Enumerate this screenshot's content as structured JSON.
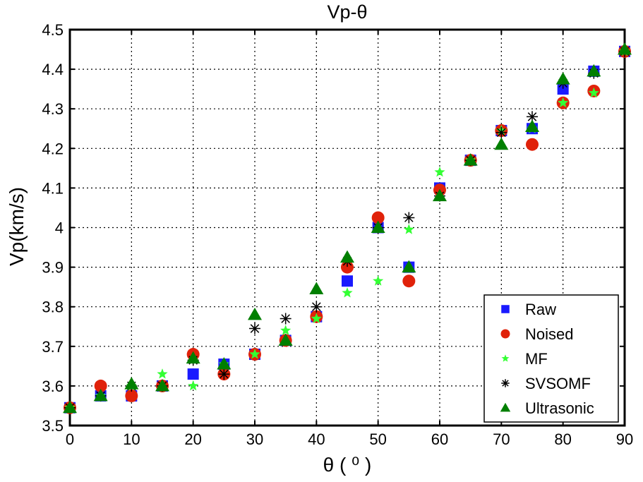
{
  "chart_data": {
    "type": "scatter",
    "title": "Vp-θ",
    "xlabel": "θ ( ⁰ )",
    "ylabel": "Vp(km/s)",
    "xlim": [
      0,
      90
    ],
    "ylim": [
      3.5,
      4.5
    ],
    "xticks": [
      "0",
      "10",
      "20",
      "30",
      "40",
      "50",
      "60",
      "70",
      "80",
      "90"
    ],
    "yticks": [
      "3.5",
      "3.6",
      "3.7",
      "3.8",
      "3.9",
      "4",
      "4.1",
      "4.2",
      "4.3",
      "4.4",
      "4.5"
    ],
    "grid": true,
    "legend_position": "bottom-right",
    "series": [
      {
        "name": "Raw",
        "marker": "square",
        "color": "#1a1aff",
        "x": [
          0,
          5,
          10,
          15,
          20,
          25,
          30,
          35,
          40,
          45,
          50,
          55,
          60,
          65,
          70,
          75,
          80,
          85,
          90
        ],
        "y": [
          3.545,
          3.575,
          3.575,
          3.6,
          3.63,
          3.655,
          3.68,
          3.715,
          3.775,
          3.865,
          4.0,
          3.9,
          4.1,
          4.17,
          4.245,
          4.25,
          4.35,
          4.395,
          4.445
        ]
      },
      {
        "name": "Noised",
        "marker": "circle",
        "color": "#e0220a",
        "x": [
          0,
          5,
          10,
          15,
          20,
          25,
          30,
          35,
          40,
          45,
          50,
          55,
          60,
          65,
          70,
          75,
          80,
          85,
          90
        ],
        "y": [
          3.545,
          3.6,
          3.575,
          3.6,
          3.68,
          3.63,
          3.68,
          3.715,
          3.775,
          3.9,
          4.025,
          3.865,
          4.095,
          4.17,
          4.245,
          4.21,
          4.315,
          4.345,
          4.445
        ]
      },
      {
        "name": "MF",
        "marker": "star",
        "color": "#33ff33",
        "x": [
          0,
          5,
          10,
          15,
          20,
          25,
          30,
          35,
          40,
          45,
          50,
          55,
          60,
          65,
          70,
          75,
          80,
          85,
          90
        ],
        "y": [
          3.545,
          3.575,
          3.6,
          3.63,
          3.6,
          3.655,
          3.68,
          3.74,
          3.77,
          3.835,
          3.865,
          3.995,
          4.14,
          4.17,
          4.245,
          4.25,
          4.315,
          4.34,
          4.445
        ]
      },
      {
        "name": "SVSOMF",
        "marker": "asterisk",
        "color": "#000000",
        "x": [
          0,
          5,
          10,
          15,
          20,
          25,
          30,
          35,
          40,
          45,
          50,
          55,
          60,
          65,
          70,
          75,
          80,
          85,
          90
        ],
        "y": [
          3.545,
          3.575,
          3.6,
          3.6,
          3.665,
          3.63,
          3.745,
          3.77,
          3.8,
          3.915,
          4.0,
          4.025,
          4.08,
          4.17,
          4.24,
          4.28,
          4.365,
          4.39,
          4.445
        ]
      },
      {
        "name": "Ultrasonic",
        "marker": "triangle",
        "color": "#007f00",
        "x": [
          0,
          5,
          10,
          15,
          20,
          25,
          30,
          35,
          40,
          45,
          50,
          55,
          60,
          65,
          70,
          75,
          80,
          85,
          90
        ],
        "y": [
          3.545,
          3.575,
          3.605,
          3.6,
          3.67,
          3.655,
          3.78,
          3.715,
          3.845,
          3.925,
          4.0,
          3.9,
          4.08,
          4.17,
          4.21,
          4.255,
          4.375,
          4.395,
          4.45
        ]
      }
    ]
  }
}
